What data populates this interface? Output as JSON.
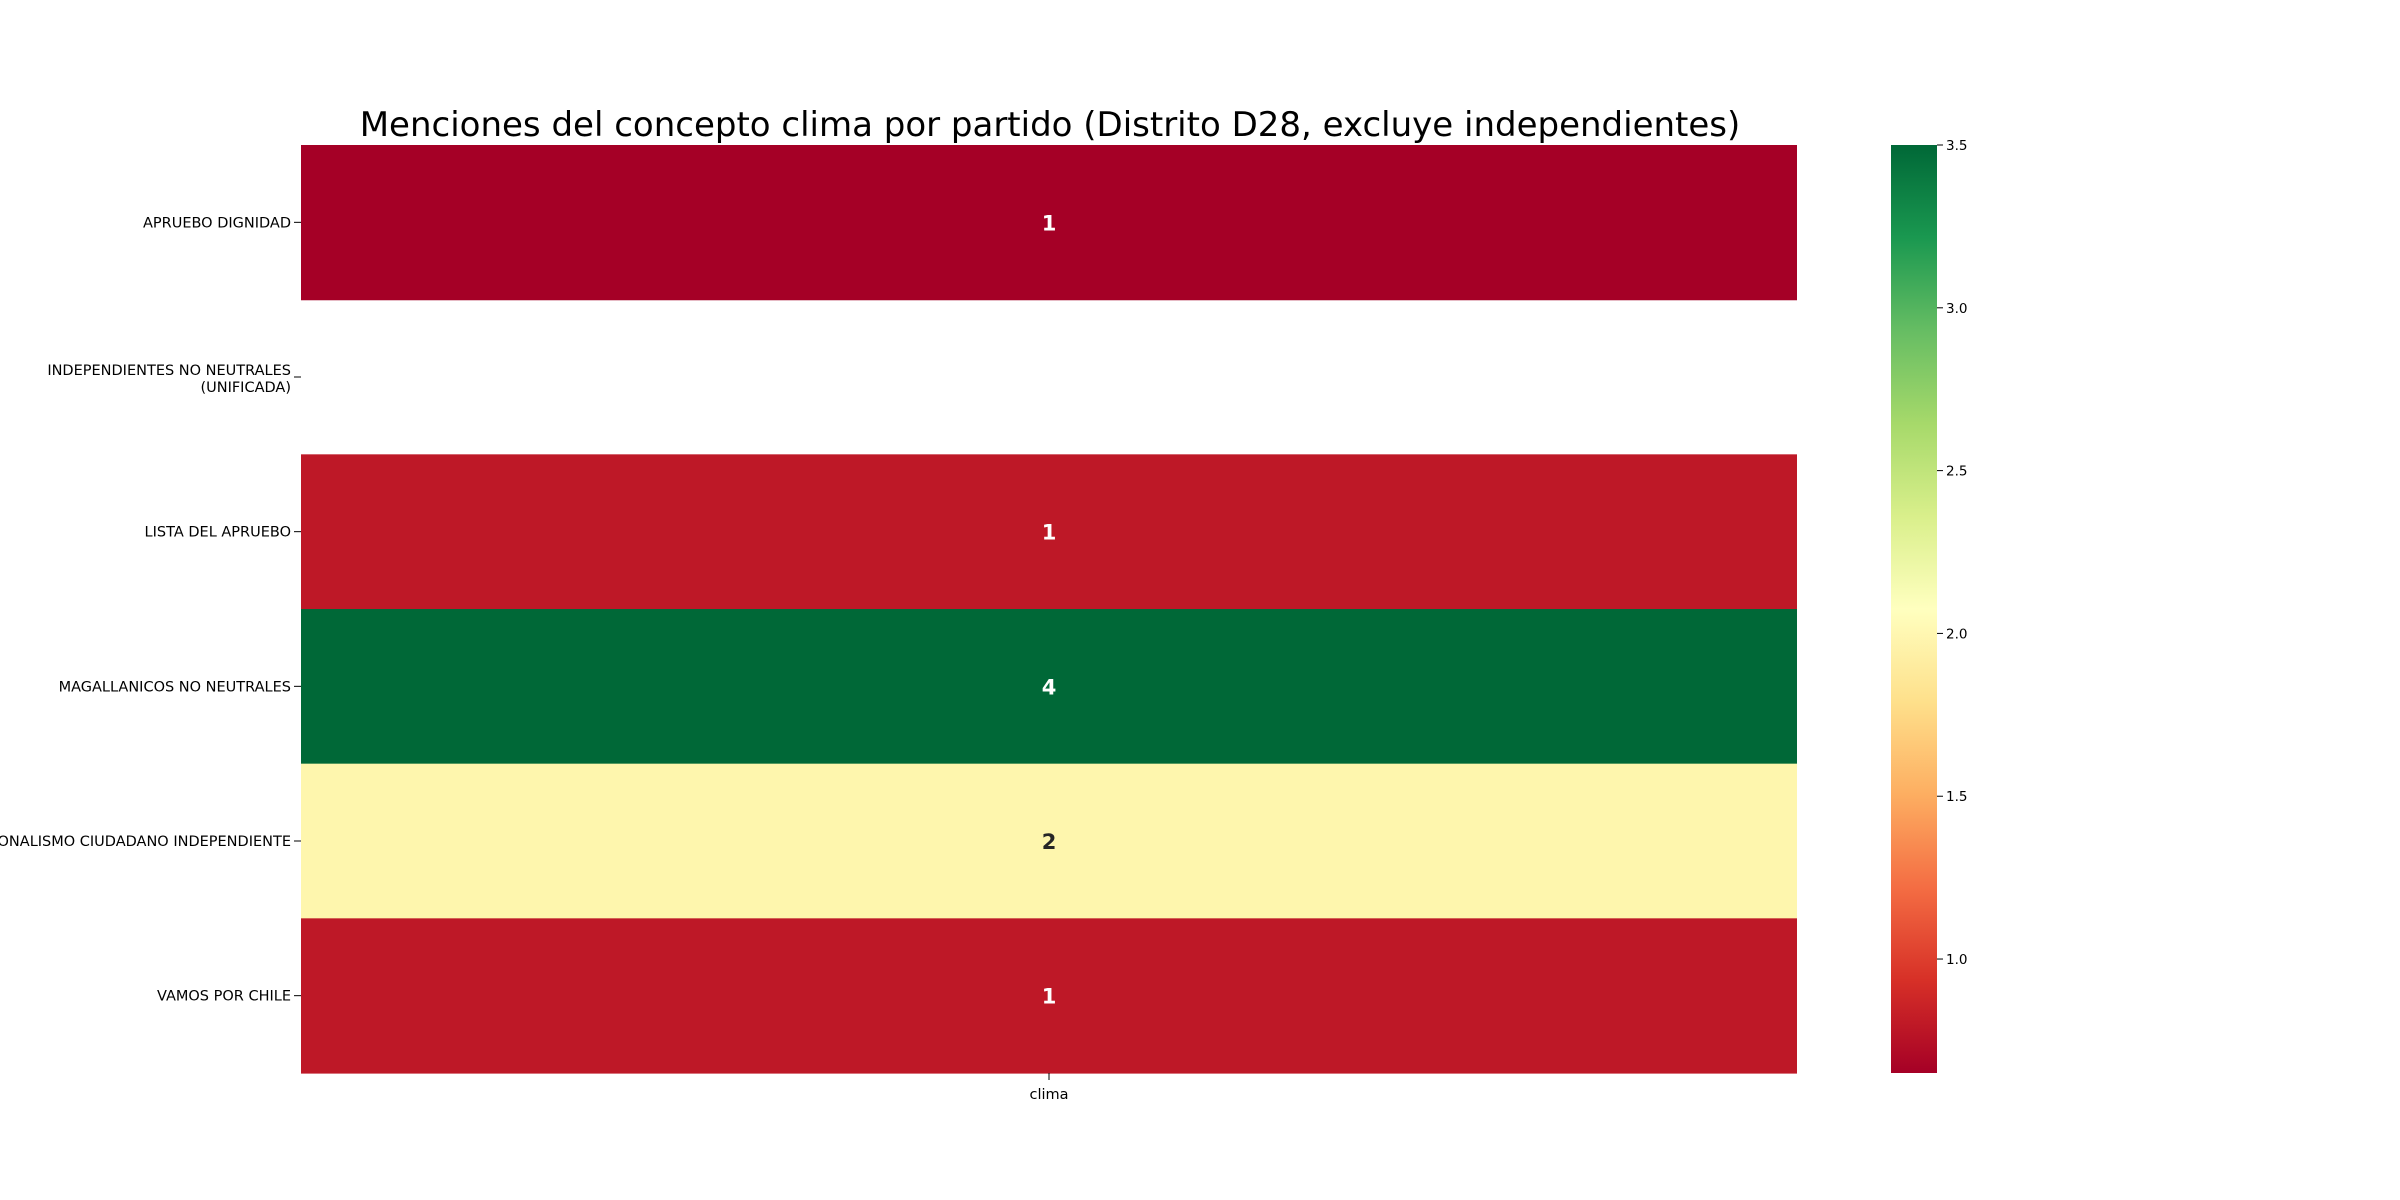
{
  "chart_data": {
    "type": "heatmap",
    "title": "Menciones del concepto clima por partido (Distrito D28, excluye independientes)",
    "xlabel": "",
    "ylabel": "",
    "columns": [
      "clima"
    ],
    "rows": [
      {
        "label": "APRUEBO DIGNIDAD",
        "value": 1,
        "color": "#a50026"
      },
      {
        "label": "INDEPENDIENTES NO NEUTRALES (UNIFICADA)",
        "value": null,
        "color": null
      },
      {
        "label": "LISTA DEL APRUEBO",
        "value": 1,
        "color": "#be1827"
      },
      {
        "label": "MAGALLANICOS NO NEUTRALES",
        "value": 4,
        "color": "#006837"
      },
      {
        "label": "REGIONALISMO CIUDADANO INDEPENDIENTE",
        "value": 2,
        "color": "#fef6ad"
      },
      {
        "label": "VAMOS POR CHILE",
        "value": 1,
        "color": "#be1827"
      }
    ],
    "colorbar": {
      "colormap": "RdYlGn",
      "range": [
        0.65,
        3.5
      ],
      "ticks": [
        "1.0",
        "1.5",
        "2.0",
        "2.5",
        "3.0",
        "3.5"
      ],
      "tick_values": [
        1.0,
        1.5,
        2.0,
        2.5,
        3.0,
        3.5
      ]
    }
  }
}
